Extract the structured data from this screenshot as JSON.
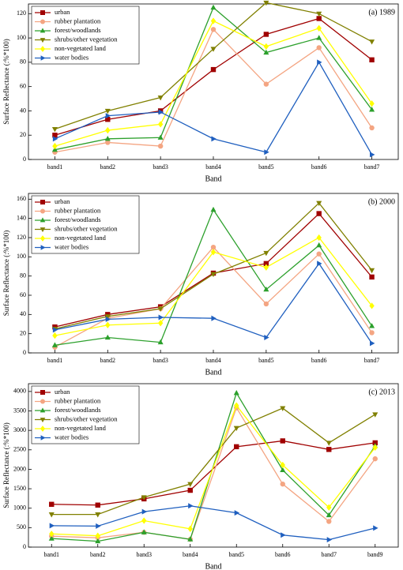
{
  "chart_data": [
    {
      "type": "line",
      "annotation": "(a) 1989",
      "xlabel": "Band",
      "ylabel": "Surface Reflectance (:%*100)",
      "categories": [
        "band1",
        "band2",
        "band3",
        "band4",
        "band5",
        "band6",
        "band7"
      ],
      "ylim": [
        0,
        128
      ],
      "yticks": [
        0,
        20,
        40,
        60,
        80,
        100,
        120
      ],
      "legend": "upper left",
      "series": [
        {
          "name": "urban",
          "color": "#a00000",
          "marker": "square",
          "values": [
            20,
            33,
            40,
            74,
            103,
            116,
            82
          ]
        },
        {
          "name": "rubber plantation",
          "color": "#f4a582",
          "marker": "circle",
          "values": [
            6,
            14,
            11,
            107,
            62,
            92,
            26
          ]
        },
        {
          "name": "forest/woodlands",
          "color": "#2ca02c",
          "marker": "triangle-up",
          "values": [
            8,
            17,
            18,
            125,
            88,
            100,
            41
          ]
        },
        {
          "name": "shrubs/other vegetation",
          "color": "#808000",
          "marker": "triangle-down",
          "values": [
            25,
            40,
            51,
            91,
            129,
            120,
            97
          ]
        },
        {
          "name": "non-vegetated land",
          "color": "#ffff00",
          "marker": "diamond",
          "values": [
            11,
            24,
            29,
            114,
            93,
            108,
            46
          ]
        },
        {
          "name": "water bodies",
          "color": "#1f5fbf",
          "marker": "triangle-right",
          "values": [
            17,
            36,
            39,
            17,
            6,
            80,
            4
          ]
        }
      ]
    },
    {
      "type": "line",
      "annotation": "(b) 2000",
      "xlabel": "Band",
      "ylabel": "Surface Reflectance (:%*100)",
      "categories": [
        "band1",
        "band2",
        "band3",
        "band4",
        "band5",
        "band6",
        "band7"
      ],
      "ylim": [
        0,
        166
      ],
      "yticks": [
        0,
        20,
        40,
        60,
        80,
        100,
        120,
        140,
        160
      ],
      "legend": "upper left",
      "series": [
        {
          "name": "urban",
          "color": "#a00000",
          "marker": "square",
          "values": [
            27,
            40,
            48,
            83,
            93,
            145,
            79
          ]
        },
        {
          "name": "rubber plantation",
          "color": "#f4a582",
          "marker": "circle",
          "values": [
            6,
            36,
            46,
            110,
            51,
            103,
            21
          ]
        },
        {
          "name": "forest/woodlands",
          "color": "#2ca02c",
          "marker": "triangle-up",
          "values": [
            8,
            16,
            11,
            149,
            66,
            112,
            28
          ]
        },
        {
          "name": "shrubs/other vegetation",
          "color": "#808000",
          "marker": "triangle-down",
          "values": [
            25,
            38,
            46,
            82,
            104,
            156,
            86
          ]
        },
        {
          "name": "non-vegetated land",
          "color": "#ffff00",
          "marker": "diamond",
          "values": [
            18,
            29,
            31,
            105,
            89,
            120,
            49
          ]
        },
        {
          "name": "water bodies",
          "color": "#1f5fbf",
          "marker": "triangle-right",
          "values": [
            24,
            35,
            37,
            36,
            16,
            93,
            10
          ]
        }
      ]
    },
    {
      "type": "line",
      "annotation": "(c) 2013",
      "xlabel": "Band",
      "ylabel": "Surface Reflectance (:%*100)",
      "categories": [
        "band1",
        "band2",
        "band3",
        "band4",
        "band5",
        "band6",
        "band7",
        "band9"
      ],
      "ylim": [
        0,
        4200
      ],
      "yticks": [
        0,
        500,
        1000,
        1500,
        2000,
        2500,
        3000,
        3500,
        4000
      ],
      "legend": "upper left",
      "series": [
        {
          "name": "urban",
          "color": "#a00000",
          "marker": "square",
          "values": [
            1100,
            1080,
            1240,
            1460,
            2580,
            2730,
            2510,
            2680
          ]
        },
        {
          "name": "rubber plantation",
          "color": "#f4a582",
          "marker": "circle",
          "values": [
            280,
            240,
            380,
            200,
            3580,
            1620,
            660,
            2270
          ]
        },
        {
          "name": "forest/woodlands",
          "color": "#2ca02c",
          "marker": "triangle-up",
          "values": [
            220,
            150,
            380,
            200,
            3960,
            1980,
            820,
            2600
          ]
        },
        {
          "name": "shrubs/other vegetation",
          "color": "#808000",
          "marker": "triangle-down",
          "values": [
            840,
            840,
            1280,
            1620,
            3060,
            3570,
            2680,
            3410
          ]
        },
        {
          "name": "non-vegetated land",
          "color": "#ffff00",
          "marker": "diamond",
          "values": [
            340,
            290,
            680,
            470,
            3640,
            2110,
            1020,
            2560
          ]
        },
        {
          "name": "water bodies",
          "color": "#1f5fbf",
          "marker": "triangle-right",
          "values": [
            550,
            540,
            910,
            1060,
            880,
            310,
            190,
            490
          ]
        }
      ]
    }
  ]
}
